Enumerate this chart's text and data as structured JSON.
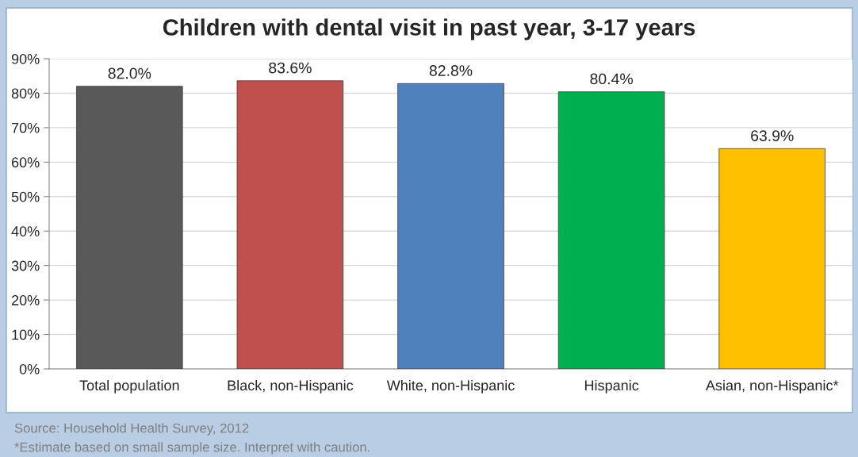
{
  "chart_data": {
    "type": "bar",
    "title": "Children with dental visit in past year, 3-17 years",
    "categories": [
      "Total population",
      "Black, non-Hispanic",
      "White, non-Hispanic",
      "Hispanic",
      "Asian, non-Hispanic*"
    ],
    "values": [
      82.0,
      83.6,
      82.8,
      80.4,
      63.9
    ],
    "colors": [
      "#595959",
      "#c0504d",
      "#4f81bd",
      "#00b050",
      "#ffc000"
    ],
    "value_labels": [
      "82.0%",
      "83.6%",
      "82.8%",
      "80.4%",
      "63.9%"
    ],
    "ylim": [
      0,
      90
    ],
    "yticks": [
      {
        "value": 0,
        "label": "0%"
      },
      {
        "value": 10,
        "label": "10%"
      },
      {
        "value": 20,
        "label": "20%"
      },
      {
        "value": 30,
        "label": "30%"
      },
      {
        "value": 40,
        "label": "40%"
      },
      {
        "value": 50,
        "label": "50%"
      },
      {
        "value": 60,
        "label": "60%"
      },
      {
        "value": 70,
        "label": "70%"
      },
      {
        "value": 80,
        "label": "80%"
      },
      {
        "value": 90,
        "label": "90%"
      }
    ],
    "grid": "y",
    "legend": false,
    "annotations": [
      "Source: Household Health Survey, 2012",
      "*Estimate based on small sample size. Interpret with caution."
    ]
  }
}
